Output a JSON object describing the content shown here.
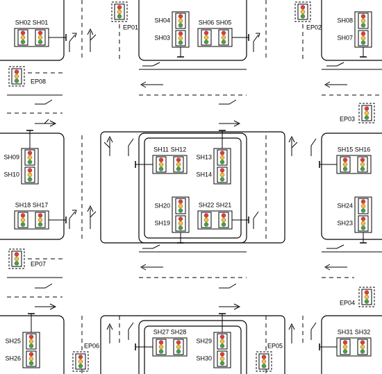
{
  "signal_heads": [
    "SH01",
    "SH02",
    "SH03",
    "SH04",
    "SH05",
    "SH06",
    "SH07",
    "SH08",
    "SH09",
    "SH10",
    "SH11",
    "SH12",
    "SH13",
    "SH14",
    "SH15",
    "SH16",
    "SH17",
    "SH18",
    "SH19",
    "SH20",
    "SH21",
    "SH22",
    "SH23",
    "SH24",
    "SH25",
    "SH26",
    "SH27",
    "SH28",
    "SH29",
    "SH30",
    "SH31",
    "SH32"
  ],
  "emergency_points": [
    "EP01",
    "EP02",
    "EP03",
    "EP04",
    "EP05",
    "EP06",
    "EP07",
    "EP08"
  ]
}
